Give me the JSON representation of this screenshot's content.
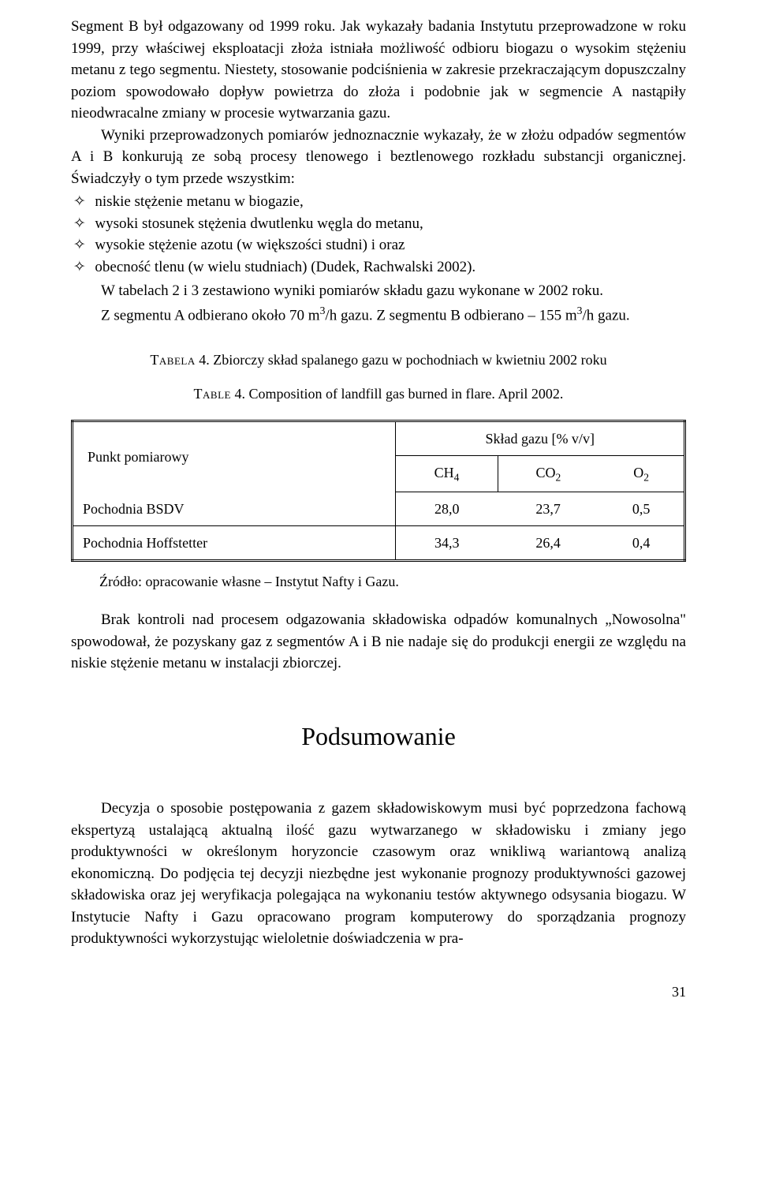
{
  "paragraph1": "Segment B był odgazowany od 1999 roku. Jak wykazały badania Instytutu przeprowadzone w roku 1999, przy właściwej eksploatacji złoża istniała możliwość odbioru biogazu o wysokim stężeniu metanu z tego segmentu. Niestety, stosowanie podciśnienia w zakresie przekraczającym dopuszczalny poziom spowodowało dopływ powietrza do złoża i podobnie jak w segmencie A nastąpiły nieodwracalne zmiany w procesie wytwarzania gazu.",
  "paragraph2": "Wyniki przeprowadzonych pomiarów jednoznacznie wykazały, że w złożu odpadów segmentów A i B konkurują ze sobą procesy tlenowego i beztlenowego rozkładu substancji organicznej. Świadczyły o tym przede wszystkim:",
  "bullets": [
    "niskie stężenie metanu w biogazie,",
    "wysoki stosunek stężenia dwutlenku węgla do metanu,",
    "wysokie stężenie azotu (w większości studni) i oraz",
    "obecność tlenu (w wielu studniach) (Dudek, Rachwalski 2002)."
  ],
  "after1": "W tabelach 2 i 3 zestawiono wyniki pomiarów składu gazu wykonane w 2002 roku.",
  "after2_pre": "Z segmentu A odbierano około 70 m",
  "after2_mid": "/h gazu. Z segmentu B odbierano – 155 m",
  "after2_end": "/h gazu.",
  "caption_pl_label": "Tabela",
  "caption_pl": " 4. Zbiorczy skład spalanego gazu w pochodniach w kwietniu 2002 roku",
  "caption_en_label": "Table",
  "caption_en": " 4. Composition of landfill gas burned in flare. April 2002.",
  "table": {
    "row_header": "Punkt pomiarowy",
    "span_header": "Skład gazu [% v/v]",
    "cols": [
      "CH",
      "CO",
      "O"
    ],
    "col_subs": [
      "4",
      "2",
      "2"
    ],
    "rows": [
      {
        "label": "Pochodnia BSDV",
        "vals": [
          "28,0",
          "23,7",
          "0,5"
        ]
      },
      {
        "label": "Pochodnia Hoffstetter",
        "vals": [
          "34,3",
          "26,4",
          "0,4"
        ]
      }
    ]
  },
  "source": "Źródło: opracowanie własne – Instytut Nafty i Gazu.",
  "para_after_table": "Brak kontroli nad procesem odgazowania składowiska odpadów komunalnych „Nowosolna\" spowodował, że pozyskany gaz z segmentów A i B nie nadaje się do produkcji energii ze względu na niskie stężenie metanu w instalacji zbiorczej.",
  "section_heading": "Podsumowanie",
  "final_para": "Decyzja o sposobie postępowania z gazem składowiskowym musi być poprzedzona fachową ekspertyzą ustalającą aktualną ilość gazu wytwarzanego w składowisku i zmiany jego produktywności w określonym horyzoncie czasowym oraz wnikliwą wariantową analizą ekonomiczną. Do podjęcia tej decyzji niezbędne jest wykonanie prognozy produktywności gazowej składowiska oraz jej weryfikacja polegająca na wykonaniu testów aktywnego odsysania biogazu. W Instytucie Nafty i Gazu opracowano program komputerowy do sporządzania prognozy produktywności wykorzystując wieloletnie doświadczenia w pra-",
  "page_number": "31",
  "bullet_char": "✧"
}
